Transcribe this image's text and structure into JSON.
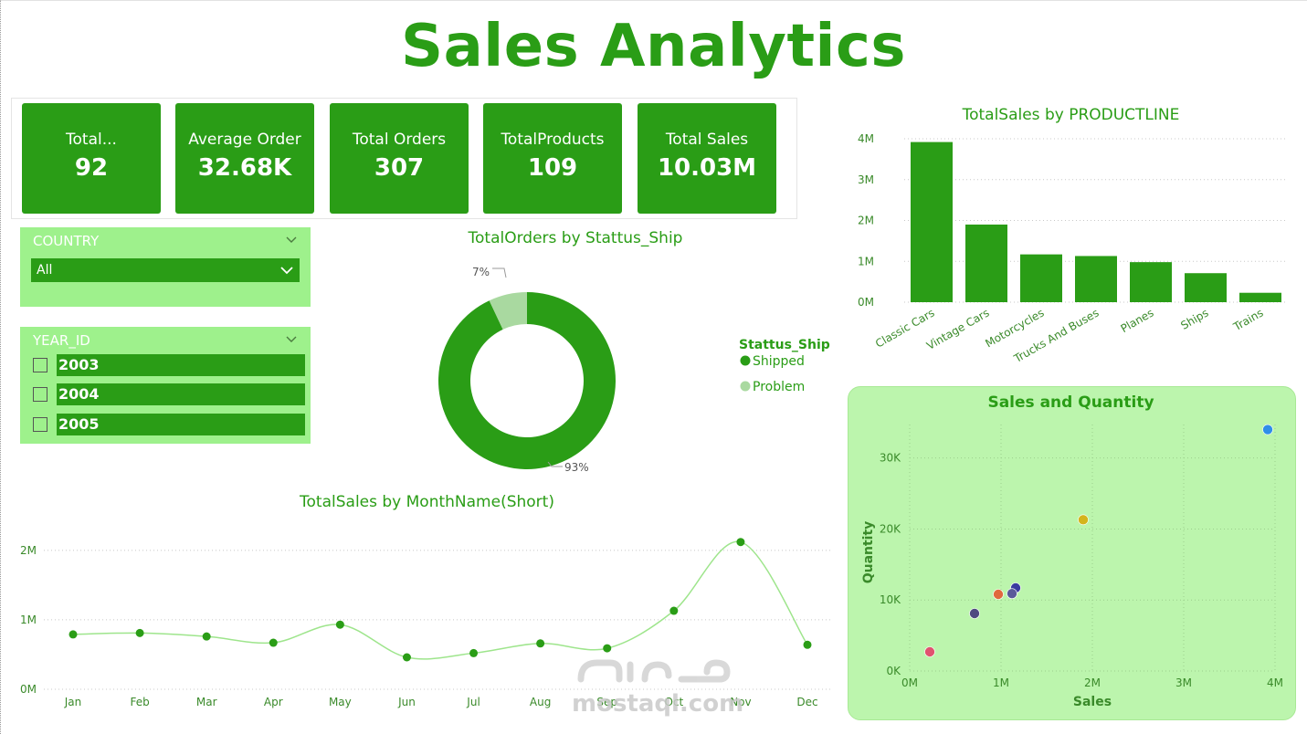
{
  "title": "Sales Analytics",
  "kpis": [
    {
      "label": "Total...",
      "value": "92"
    },
    {
      "label": "Average Order",
      "value": "32.68K"
    },
    {
      "label": "Total Orders",
      "value": "307"
    },
    {
      "label": "TotalProducts",
      "value": "109"
    },
    {
      "label": "Total Sales",
      "value": "10.03M"
    }
  ],
  "slicers": {
    "country": {
      "header": "COUNTRY",
      "selected": "All"
    },
    "year": {
      "header": "YEAR_ID",
      "options": [
        "2003",
        "2004",
        "2005"
      ]
    }
  },
  "watermark": "mostaql.com",
  "colors": {
    "accent": "#2a9d16",
    "light": "#9ef18c",
    "card": "#bcf5ad",
    "problem": "#a9d9a0"
  },
  "chart_data": [
    {
      "type": "bar",
      "title": "TotalSales by PRODUCTLINE",
      "categories": [
        "Classic Cars",
        "Vintage Cars",
        "Motorcycles",
        "Trucks And Buses",
        "Planes",
        "Ships",
        "Trains"
      ],
      "values": [
        3.92,
        1.9,
        1.17,
        1.13,
        0.98,
        0.71,
        0.23
      ],
      "ylim": [
        0,
        4
      ],
      "yticks": [
        "0M",
        "1M",
        "2M",
        "3M",
        "4M"
      ],
      "grid": true
    },
    {
      "type": "pie",
      "title": "TotalOrders by Stattus_Ship",
      "legend_title": "Stattus_Ship",
      "legend_position": "right",
      "slices": [
        {
          "name": "Shipped",
          "value": 93,
          "label": "93%"
        },
        {
          "name": "Problem",
          "value": 7,
          "label": "7%"
        }
      ]
    },
    {
      "type": "line",
      "title": "TotalSales by MonthName(Short)",
      "categories": [
        "Jan",
        "Feb",
        "Mar",
        "Apr",
        "May",
        "Jun",
        "Jul",
        "Aug",
        "Sep",
        "Oct",
        "Nov",
        "Dec"
      ],
      "values": [
        0.79,
        0.81,
        0.76,
        0.67,
        0.93,
        0.46,
        0.52,
        0.66,
        0.59,
        1.13,
        2.12,
        0.64
      ],
      "ylim": [
        0,
        2.3
      ],
      "yticks": [
        "0M",
        "1M",
        "2M"
      ],
      "grid": true
    },
    {
      "type": "scatter",
      "title": "Sales and Quantity",
      "xlabel": "Sales",
      "ylabel": "Quantity",
      "xlim": [
        0,
        4
      ],
      "ylim": [
        0,
        36
      ],
      "xticks": [
        "0M",
        "1M",
        "2M",
        "3M",
        "4M"
      ],
      "yticks": [
        "0K",
        "10K",
        "20K",
        "30K"
      ],
      "points": [
        {
          "x": 3.92,
          "y": 34.0,
          "color": "#2f8ee8"
        },
        {
          "x": 1.9,
          "y": 21.3,
          "color": "#d4b41c"
        },
        {
          "x": 1.16,
          "y": 11.7,
          "color": "#3b3ba0"
        },
        {
          "x": 1.12,
          "y": 10.9,
          "color": "#5a5a9a"
        },
        {
          "x": 0.97,
          "y": 10.8,
          "color": "#e06a3e"
        },
        {
          "x": 0.71,
          "y": 8.1,
          "color": "#4f4a80"
        },
        {
          "x": 0.22,
          "y": 2.7,
          "color": "#e0536f"
        }
      ],
      "grid": true
    }
  ]
}
